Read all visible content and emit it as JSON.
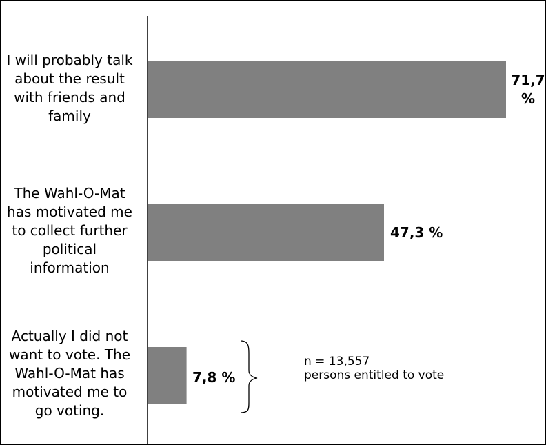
{
  "chart_data": {
    "type": "bar",
    "orientation": "horizontal",
    "categories": [
      "I will probably talk about the result with friends and family",
      "The Wahl-O-Mat has motivated me to collect further political information",
      "Actually I did not want to vote. The Wahl-O-Mat has motivated me to go voting."
    ],
    "values": [
      71.7,
      47.3,
      7.8
    ],
    "value_labels": [
      "71,7 %",
      "47,3 %",
      "7,8 %"
    ],
    "unit": "%",
    "xlim": [
      0,
      100
    ],
    "bar_color": "#808080",
    "grid": false,
    "annotation": {
      "line1": "n = 13,557",
      "line2": "persons entitled to vote"
    }
  }
}
